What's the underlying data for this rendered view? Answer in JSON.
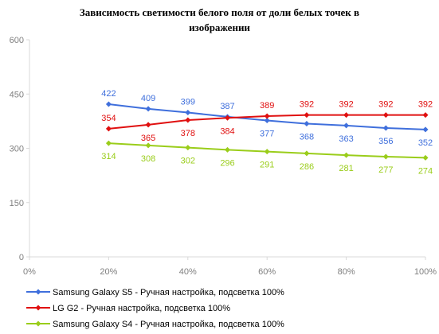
{
  "chart_data": {
    "type": "line",
    "title_lines": [
      "Зависимость светимости белого поля от доли белых точек в",
      "изображении"
    ],
    "xlabel": "",
    "ylabel": "",
    "x": [
      20,
      30,
      40,
      50,
      60,
      70,
      80,
      90,
      100
    ],
    "x_tick_values": [
      0,
      20,
      40,
      60,
      80,
      100
    ],
    "x_tick_labels": [
      "0%",
      "20%",
      "40%",
      "60%",
      "80%",
      "100%"
    ],
    "xlim": [
      0,
      100
    ],
    "ylim": [
      0,
      600
    ],
    "y_tick_values": [
      0,
      150,
      300,
      450,
      600
    ],
    "y_tick_labels": [
      "0",
      "150",
      "300",
      "450",
      "600"
    ],
    "grid": false,
    "legend_position": "bottom-left",
    "series": [
      {
        "name": "Samsung Galaxy S5 - Ручная настройка, подсветка 100%",
        "color": "#3f6fdc",
        "values": [
          422,
          409,
          399,
          387,
          377,
          368,
          363,
          356,
          352
        ],
        "labels": [
          "422",
          "409",
          "399",
          "387",
          "377",
          "368",
          "363",
          "356",
          "352"
        ],
        "label_side": [
          "above",
          "above",
          "above",
          "above",
          "below",
          "below",
          "below",
          "below",
          "below"
        ]
      },
      {
        "name": "LG G2 - Ручная настройка, подсветка 100%",
        "color": "#e01010",
        "values": [
          354,
          365,
          378,
          384,
          389,
          392,
          392,
          392,
          392
        ],
        "labels": [
          "354",
          "365",
          "378",
          "384",
          "389",
          "392",
          "392",
          "392",
          "392"
        ],
        "label_side": [
          "above",
          "below",
          "below",
          "below",
          "above",
          "above",
          "above",
          "above",
          "above"
        ]
      },
      {
        "name": "Samsung Galaxy S4 - Ручная настройка, подсветка 100%",
        "color": "#9acd1a",
        "values": [
          314,
          308,
          302,
          296,
          291,
          286,
          281,
          277,
          274
        ],
        "labels": [
          "314",
          "308",
          "302",
          "296",
          "291",
          "286",
          "281",
          "277",
          "274"
        ],
        "label_side": [
          "below",
          "below",
          "below",
          "below",
          "below",
          "below",
          "below",
          "below",
          "below"
        ]
      }
    ]
  }
}
